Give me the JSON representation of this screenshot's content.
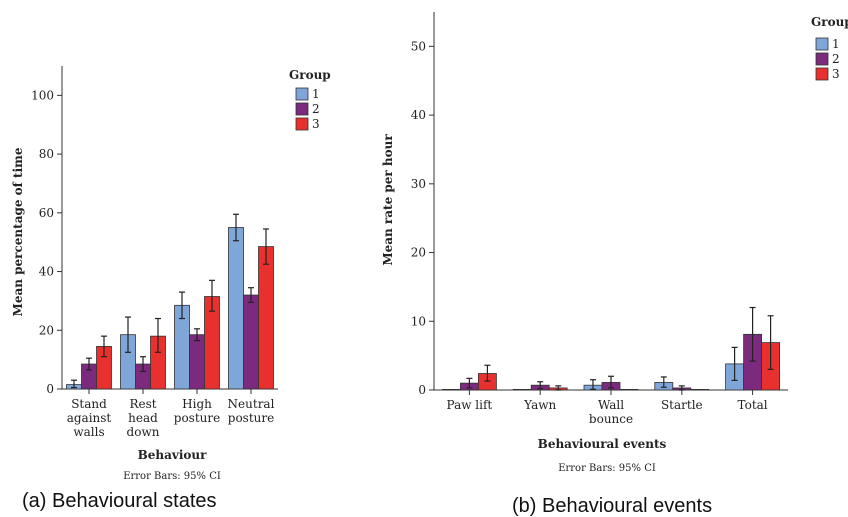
{
  "captions": {
    "a": "(a) Behavioural states",
    "b": "(b) Behavioural events"
  },
  "chart_data": [
    {
      "type": "bar",
      "xlabel": "Behaviour",
      "ylabel": "Mean percentage of time",
      "footnote": "Error Bars: 95% CI",
      "legend_title": "Group",
      "legend_position": "top-right",
      "ylim": [
        0,
        110
      ],
      "yticks": [
        0,
        20,
        40,
        60,
        80,
        100
      ],
      "categories": [
        [
          "Stand",
          "against",
          "walls"
        ],
        [
          "Rest",
          "head",
          "down"
        ],
        [
          "High",
          "posture"
        ],
        [
          "Neutral",
          "posture"
        ]
      ],
      "series": [
        {
          "name": "1",
          "color": "#7ea6d8",
          "values": [
            1.5,
            18.5,
            28.5,
            55
          ],
          "err_low": [
            0.5,
            12.5,
            24,
            50.5
          ],
          "err_high": [
            3,
            24.5,
            33,
            59.5
          ]
        },
        {
          "name": "2",
          "color": "#7b2a7e",
          "values": [
            8.5,
            8.5,
            18.5,
            32
          ],
          "err_low": [
            6.5,
            6,
            16.5,
            29.5
          ],
          "err_high": [
            10.5,
            11,
            20.5,
            34.5
          ]
        },
        {
          "name": "3",
          "color": "#e8312f",
          "values": [
            14.5,
            18,
            31.5,
            48.5
          ],
          "err_low": [
            11,
            12.5,
            26.5,
            42.5
          ],
          "err_high": [
            18,
            24,
            37,
            54.5
          ]
        }
      ]
    },
    {
      "type": "bar",
      "xlabel": "Behavioural events",
      "ylabel": "Mean rate per hour",
      "footnote": "Error Bars: 95% CI",
      "legend_title": "Group",
      "legend_position": "top-right",
      "ylim": [
        0,
        55
      ],
      "yticks": [
        0,
        10,
        20,
        30,
        40,
        50
      ],
      "categories": [
        [
          "Paw lift"
        ],
        [
          "Yawn"
        ],
        [
          "Wall",
          "bounce"
        ],
        [
          "Startle"
        ],
        [
          "Total"
        ]
      ],
      "series": [
        {
          "name": "1",
          "color": "#7ea6d8",
          "values": [
            0,
            0,
            0.7,
            1.1,
            3.8
          ],
          "err_low": [
            0,
            0,
            0.1,
            0.4,
            1.4
          ],
          "err_high": [
            0,
            0,
            1.5,
            1.9,
            6.2
          ]
        },
        {
          "name": "2",
          "color": "#7b2a7e",
          "values": [
            1.0,
            0.7,
            1.1,
            0.3,
            8.1
          ],
          "err_low": [
            0.3,
            0.2,
            0.3,
            0,
            4.2
          ],
          "err_high": [
            1.7,
            1.2,
            2.0,
            0.6,
            12.0
          ]
        },
        {
          "name": "3",
          "color": "#e8312f",
          "values": [
            2.4,
            0.3,
            0,
            0,
            6.9
          ],
          "err_low": [
            1.3,
            0,
            0,
            0,
            3.0
          ],
          "err_high": [
            3.6,
            0.6,
            0,
            0,
            10.8
          ]
        }
      ]
    }
  ]
}
